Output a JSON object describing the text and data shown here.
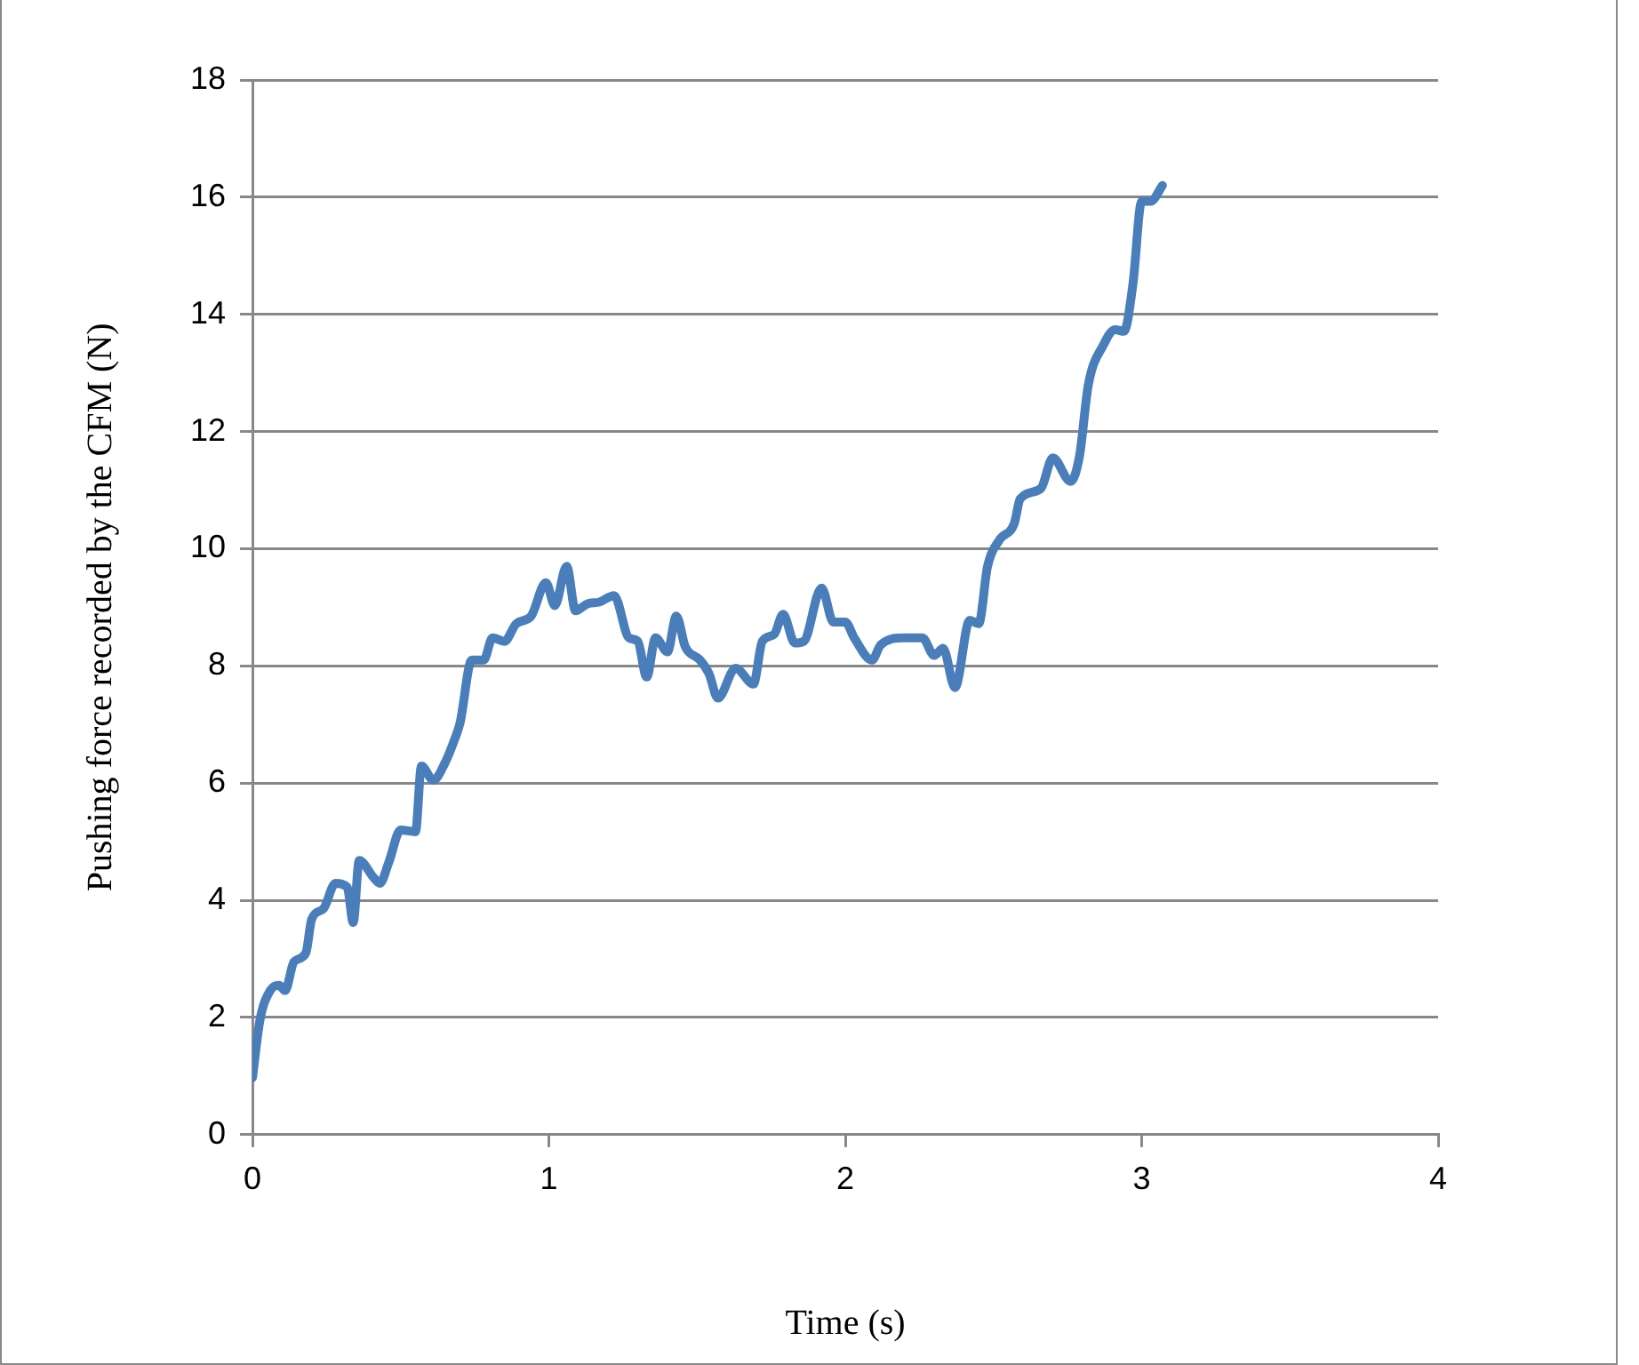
{
  "chart_data": {
    "type": "line",
    "xlabel": "Time (s)",
    "ylabel": "Pushing force recorded by the CFM (N)",
    "xlim": [
      0,
      4
    ],
    "xticks": [
      0,
      1,
      2,
      3,
      4
    ],
    "ylim": [
      0,
      18
    ],
    "yticks": [
      0,
      2,
      4,
      6,
      8,
      10,
      12,
      14,
      16,
      18
    ],
    "grid": "y",
    "legend": false,
    "marker": "none",
    "line_style": "solid",
    "series": [
      {
        "color": "#4a7ebb",
        "x": [
          0,
          0.025,
          0.06,
          0.09,
          0.11,
          0.14,
          0.18,
          0.2,
          0.24,
          0.28,
          0.32,
          0.34,
          0.36,
          0.41,
          0.43,
          0.46,
          0.5,
          0.55,
          0.57,
          0.61,
          0.65,
          0.68,
          0.7,
          0.74,
          0.78,
          0.81,
          0.85,
          0.89,
          0.94,
          0.99,
          1.02,
          1.06,
          1.09,
          1.13,
          1.17,
          1.22,
          1.27,
          1.3,
          1.33,
          1.36,
          1.4,
          1.43,
          1.46,
          1.51,
          1.54,
          1.57,
          1.63,
          1.69,
          1.72,
          1.76,
          1.79,
          1.83,
          1.86,
          1.92,
          1.96,
          2.0,
          2.03,
          2.09,
          2.12,
          2.2,
          2.26,
          2.3,
          2.33,
          2.37,
          2.42,
          2.45,
          2.48,
          2.52,
          2.57,
          2.59,
          2.66,
          2.7,
          2.76,
          2.79,
          2.82,
          2.87,
          2.91,
          2.94,
          2.97,
          3.0,
          3.03,
          3.07
        ],
        "values": [
          0.97,
          1.95,
          2.46,
          2.55,
          2.46,
          2.95,
          3.1,
          3.68,
          3.86,
          4.29,
          4.22,
          3.62,
          4.68,
          4.38,
          4.29,
          4.65,
          5.2,
          5.17,
          6.29,
          6.05,
          6.35,
          6.72,
          7.02,
          8.1,
          8.1,
          8.48,
          8.42,
          8.72,
          8.85,
          9.42,
          9.03,
          9.7,
          8.94,
          9.06,
          9.09,
          9.2,
          8.48,
          8.42,
          7.81,
          8.48,
          8.24,
          8.85,
          8.33,
          8.1,
          7.87,
          7.45,
          7.96,
          7.69,
          8.42,
          8.54,
          8.88,
          8.39,
          8.42,
          9.33,
          8.75,
          8.75,
          8.48,
          8.1,
          8.36,
          8.48,
          8.48,
          8.18,
          8.3,
          7.63,
          8.78,
          8.72,
          9.7,
          10.15,
          10.43,
          10.85,
          11.03,
          11.55,
          11.15,
          11.58,
          12.8,
          13.47,
          13.74,
          13.71,
          14.5,
          15.93,
          15.93,
          16.2
        ]
      }
    ]
  }
}
